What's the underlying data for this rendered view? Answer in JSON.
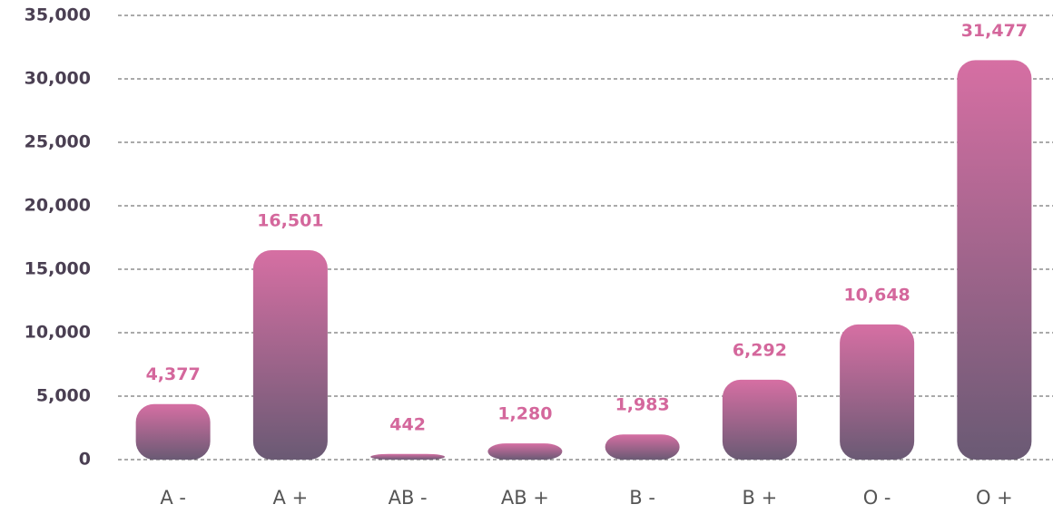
{
  "chart_data": {
    "type": "bar",
    "categories": [
      "A -",
      "A +",
      "AB -",
      "AB +",
      "B -",
      "B +",
      "O -",
      "O +"
    ],
    "values": [
      4377,
      16501,
      442,
      1280,
      1983,
      6292,
      10648,
      31477
    ],
    "value_labels": [
      "4,377",
      "16,501",
      "442",
      "1,280",
      "1,983",
      "6,292",
      "10,648",
      "31,477"
    ],
    "gradient": [
      "#d66fa3",
      "#6a5a74"
    ],
    "ylim": [
      0,
      35000
    ],
    "yticks": [
      0,
      {
        "value": 5000,
        "label": "5,000"
      },
      {
        "value": 10000,
        "label": "10,000"
      },
      {
        "value": 15000,
        "label": "15,000"
      },
      {
        "value": 20000,
        "label": "20,000"
      },
      {
        "value": 25000,
        "label": "25,000"
      },
      {
        "value": 30000,
        "label": "30,000"
      },
      {
        "value": 35000,
        "label": "35,000"
      }
    ],
    "grid": true
  }
}
